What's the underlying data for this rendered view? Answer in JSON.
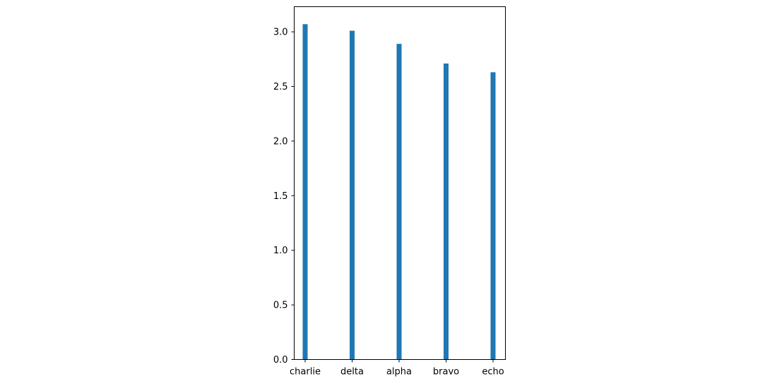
{
  "chart_data": {
    "type": "bar",
    "title": "",
    "xlabel": "",
    "ylabel": "",
    "categories": [
      "charlie",
      "delta",
      "alpha",
      "bravo",
      "echo"
    ],
    "values": [
      3.07,
      3.01,
      2.89,
      2.71,
      2.63
    ],
    "ylim": [
      0,
      3.23
    ],
    "yticks": [
      0.0,
      0.5,
      1.0,
      1.5,
      2.0,
      2.5,
      3.0
    ],
    "ytick_labels": [
      "0.0",
      "0.5",
      "1.0",
      "1.5",
      "2.0",
      "2.5",
      "3.0"
    ],
    "bar_color": "#1f77b4",
    "grid": false,
    "legend": "none"
  }
}
